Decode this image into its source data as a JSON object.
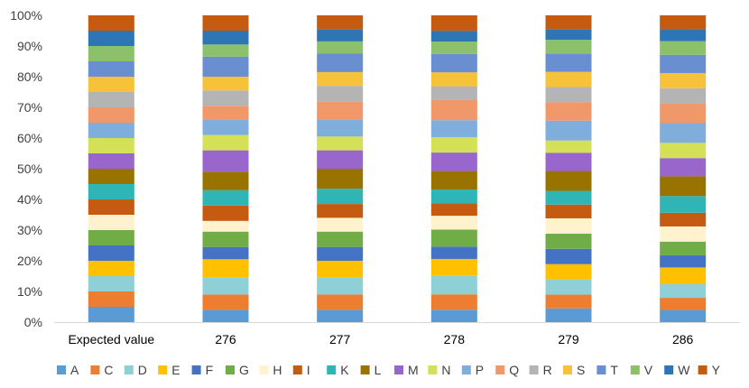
{
  "chart_data": {
    "type": "bar",
    "stacked": true,
    "percent_stacked": true,
    "categories": [
      "Expected value",
      "276",
      "277",
      "278",
      "279",
      "286"
    ],
    "ylim": [
      0,
      100
    ],
    "yticks": [
      "0%",
      "10%",
      "20%",
      "30%",
      "40%",
      "50%",
      "60%",
      "70%",
      "80%",
      "90%",
      "100%"
    ],
    "legend_position": "bottom",
    "grid": false,
    "series": [
      {
        "name": "A",
        "color": "#5B9BD5",
        "values": [
          5,
          4,
          4,
          4,
          4.5,
          4
        ]
      },
      {
        "name": "C",
        "color": "#ED7D31",
        "values": [
          5,
          5,
          5,
          5,
          4.5,
          4
        ]
      },
      {
        "name": "D",
        "color": "#8FCFD6",
        "values": [
          5,
          5.5,
          5.5,
          6,
          5,
          4.5
        ]
      },
      {
        "name": "E",
        "color": "#FFC000",
        "values": [
          5,
          6,
          5.5,
          5.5,
          5,
          5.5
        ]
      },
      {
        "name": "F",
        "color": "#4472C4",
        "values": [
          5,
          4,
          4.5,
          4,
          5,
          4
        ]
      },
      {
        "name": "G",
        "color": "#70AD47",
        "values": [
          5,
          5,
          5,
          5.5,
          5,
          4.5
        ]
      },
      {
        "name": "H",
        "color": "#FFF2CC",
        "values": [
          5,
          3.5,
          4.5,
          4.5,
          5,
          5
        ]
      },
      {
        "name": "I",
        "color": "#C55A11",
        "values": [
          5,
          5,
          4.5,
          4,
          4.5,
          4.5
        ]
      },
      {
        "name": "K",
        "color": "#2FB5B5",
        "values": [
          5,
          5,
          5,
          4.5,
          4.5,
          5.5
        ]
      },
      {
        "name": "L",
        "color": "#997300",
        "values": [
          5,
          6,
          6.5,
          6,
          6.5,
          6.5
        ]
      },
      {
        "name": "M",
        "color": "#9966CC",
        "values": [
          5,
          7,
          6,
          6,
          6,
          6
        ]
      },
      {
        "name": "N",
        "color": "#D4E157",
        "values": [
          5,
          5,
          4.5,
          5,
          4,
          5
        ]
      },
      {
        "name": "P",
        "color": "#7FAEDC",
        "values": [
          5,
          5,
          5.5,
          5.5,
          6.5,
          6.5
        ]
      },
      {
        "name": "Q",
        "color": "#F0986A",
        "values": [
          5,
          4.5,
          6,
          6.5,
          6,
          6.5
        ]
      },
      {
        "name": "R",
        "color": "#B4B4B4",
        "values": [
          5,
          5,
          5,
          4.5,
          5,
          5
        ]
      },
      {
        "name": "S",
        "color": "#F5C23A",
        "values": [
          5,
          4.5,
          4.5,
          4.5,
          5,
          5
        ]
      },
      {
        "name": "T",
        "color": "#6A8FD0",
        "values": [
          5,
          6.5,
          6,
          6,
          6,
          6
        ]
      },
      {
        "name": "V",
        "color": "#8CC06B",
        "values": [
          5,
          4,
          4,
          4,
          4.5,
          4.5
        ]
      },
      {
        "name": "W",
        "color": "#2E75B6",
        "values": [
          5,
          4.5,
          4,
          3.5,
          3.5,
          4
        ]
      },
      {
        "name": "Y",
        "color": "#C55A11",
        "values": [
          5,
          5,
          4.5,
          5,
          4.5,
          4.5
        ]
      }
    ]
  }
}
